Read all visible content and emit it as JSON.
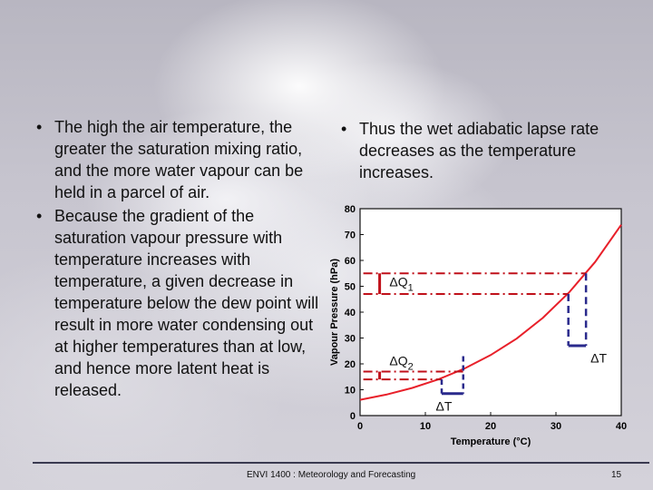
{
  "left_bullets": [
    "The high the air temperature, the greater the saturation mixing ratio, and the more water vapour can be held in a parcel of air.",
    "Because the gradient of the saturation vapour pressure with temperature increases with temperature, a given decrease in temperature below the dew point will result in more water condensing out at higher temperatures than at low, and hence more latent heat is released."
  ],
  "right_bullets": [
    "Thus the wet adiabatic lapse rate decreases as the temperature increases."
  ],
  "bullet_glyph": "•",
  "chart_data": {
    "type": "line",
    "xlabel": "Temperature (°C)",
    "ylabel": "Vapour Pressure (hPa)",
    "xlim": [
      0,
      40
    ],
    "ylim": [
      0,
      80
    ],
    "xticks": [
      0,
      10,
      20,
      30,
      40
    ],
    "yticks": [
      0,
      10,
      20,
      30,
      40,
      50,
      60,
      70,
      80
    ],
    "series": [
      {
        "color": "#e8202a",
        "x": [
          0,
          4,
          8,
          12,
          16,
          20,
          24,
          28,
          32,
          36,
          40
        ],
        "y": [
          6.1,
          8.1,
          10.7,
          14.0,
          18.2,
          23.4,
          29.8,
          37.8,
          47.6,
          59.4,
          73.8
        ]
      }
    ],
    "annotations": {
      "dq1_label": "ΔQ",
      "dq1_sub": "1",
      "dq2_label": "ΔQ",
      "dq2_sub": "2",
      "dt_label": "ΔT",
      "dt2_label": "ΔT",
      "red_color": "#c0101a",
      "blue_color": "#2a2a8c"
    }
  },
  "footer": {
    "course": "ENVI 1400 : Meteorology and Forecasting",
    "page": "15"
  }
}
